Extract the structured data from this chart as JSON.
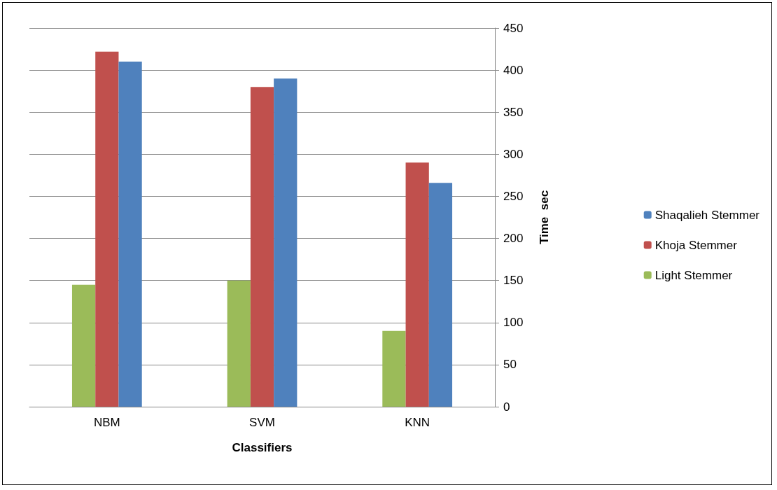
{
  "chart_data": {
    "type": "bar",
    "xlabel": "Classifiers",
    "ylabel": "Time  sec",
    "categories": [
      "NBM",
      "SVM",
      "KNN"
    ],
    "series": [
      {
        "name": "Light Stemmer",
        "color": "#9bbb59",
        "values": [
          145,
          150,
          90
        ]
      },
      {
        "name": "Khoja Stemmer",
        "color": "#c0504d",
        "values": [
          422,
          380,
          290
        ]
      },
      {
        "name": "Shaqalieh Stemmer",
        "color": "#4f81bd",
        "values": [
          410,
          390,
          266
        ]
      }
    ],
    "ylim": [
      0,
      450
    ],
    "yticks": [
      0,
      50,
      100,
      150,
      200,
      250,
      300,
      350,
      400,
      450
    ],
    "grid": "y",
    "legend": "right"
  }
}
